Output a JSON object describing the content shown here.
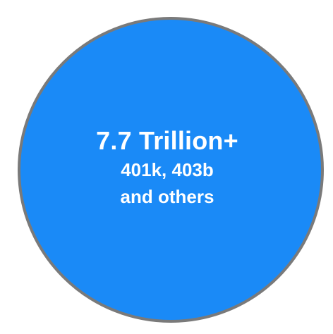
{
  "bubble": {
    "fill_color": "#1a8af7",
    "border_color": "#7a7a7a",
    "headline": "7.7 Trillion+",
    "lines": [
      "401k, 403b",
      "and others"
    ]
  }
}
